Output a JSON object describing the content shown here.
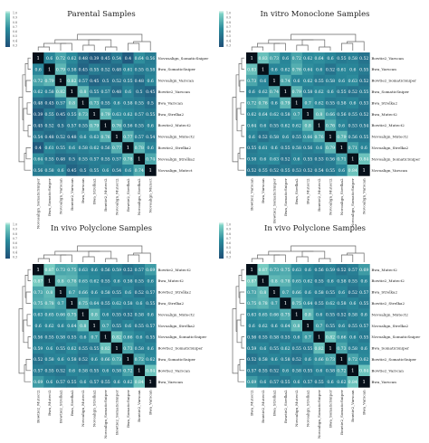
{
  "colors": {
    "low": "#1f4f77",
    "mid": "#2a8a9b",
    "high": "#7fd3c6",
    "diag": "#06101a",
    "cell_text": "#ffffff",
    "tree": "#666666"
  },
  "colorbar_ticks": [
    "1.0",
    "0.9",
    "0.8",
    "0.7",
    "0.6",
    "0.5",
    "0.4",
    "0.3"
  ],
  "chart_data": [
    {
      "type": "heatmap",
      "title": "Parental Samples",
      "samples": [
        "Novosalign_SomaticSniper",
        "Bwa_SomaticSniper",
        "Novoalign_Varscan",
        "Bowtie2_Varscan",
        "Bwa_Varscan",
        "Bwa_Strelka2",
        "Bowtie2_Mutect2",
        "Novoalign_Mutect2",
        "Bowtie2_Strelka2",
        "Novoalign_Strelka2",
        "Novoalign_Mutect"
      ],
      "matrix": [
        [
          1,
          0.6,
          0.72,
          0.62,
          0.48,
          0.39,
          0.45,
          0.54,
          0.4,
          0.64,
          0.56
        ],
        [
          0.6,
          1,
          0.79,
          0.58,
          0.45,
          0.55,
          0.52,
          0.48,
          0.61,
          0.55,
          0.58
        ],
        [
          0.72,
          0.79,
          1,
          0.82,
          0.57,
          0.45,
          0.5,
          0.52,
          0.55,
          0.48,
          0.6
        ],
        [
          0.62,
          0.58,
          0.82,
          1,
          0.8,
          0.55,
          0.57,
          0.48,
          0.6,
          0.5,
          0.45
        ],
        [
          0.48,
          0.45,
          0.57,
          0.8,
          1,
          0.73,
          0.55,
          0.6,
          0.58,
          0.55,
          0.5
        ],
        [
          0.39,
          0.55,
          0.45,
          0.55,
          0.73,
          1,
          0.79,
          0.63,
          0.62,
          0.57,
          0.55
        ],
        [
          0.45,
          0.52,
          0.5,
          0.57,
          0.55,
          0.79,
          1,
          0.76,
          0.56,
          0.55,
          0.6
        ],
        [
          0.54,
          0.48,
          0.52,
          0.48,
          0.6,
          0.63,
          0.76,
          1,
          0.77,
          0.57,
          0.54
        ],
        [
          0.4,
          0.61,
          0.55,
          0.6,
          0.58,
          0.62,
          0.56,
          0.77,
          1,
          0.78,
          0.6
        ],
        [
          0.64,
          0.55,
          0.48,
          0.5,
          0.55,
          0.57,
          0.55,
          0.57,
          0.78,
          1,
          0.74
        ],
        [
          0.56,
          0.58,
          0.6,
          0.45,
          0.5,
          0.55,
          0.6,
          0.54,
          0.6,
          0.74,
          1
        ]
      ]
    },
    {
      "type": "heatmap",
      "title": "In vitro Monoclone Samples",
      "samples": [
        "Bowtie2_Varscan",
        "Bwa_Varscan",
        "Bowtie2_SomaticSniper",
        "Bwa_SomaticSniper",
        "Bwa_Strelka2",
        "Bwa_Mutect2",
        "Bowtie2_Mutect2",
        "Novoalign_Mutect2",
        "Novoalign_Strelka2",
        "Novoalign_SomaticSniper",
        "Novoalign_Varscan"
      ],
      "matrix": [
        [
          1,
          0.83,
          0.73,
          0.6,
          0.72,
          0.62,
          0.64,
          0.6,
          0.55,
          0.58,
          0.52
        ],
        [
          0.83,
          1,
          0.6,
          0.62,
          0.76,
          0.64,
          0.6,
          0.52,
          0.61,
          0.6,
          0.55
        ],
        [
          0.73,
          0.6,
          1,
          0.74,
          0.6,
          0.62,
          0.55,
          0.58,
          0.6,
          0.63,
          0.52
        ],
        [
          0.6,
          0.62,
          0.74,
          1,
          0.79,
          0.58,
          0.62,
          0.6,
          0.55,
          0.52,
          0.55
        ],
        [
          0.72,
          0.76,
          0.6,
          0.79,
          1,
          0.7,
          0.62,
          0.55,
          0.58,
          0.6,
          0.53
        ],
        [
          0.62,
          0.64,
          0.62,
          0.58,
          0.7,
          1,
          0.8,
          0.66,
          0.56,
          0.55,
          0.52
        ],
        [
          0.64,
          0.6,
          0.55,
          0.62,
          0.62,
          0.8,
          1,
          0.76,
          0.6,
          0.53,
          0.54
        ],
        [
          0.6,
          0.52,
          0.58,
          0.6,
          0.55,
          0.66,
          0.76,
          1,
          0.79,
          0.56,
          0.55
        ],
        [
          0.55,
          0.61,
          0.6,
          0.55,
          0.58,
          0.56,
          0.6,
          0.79,
          1,
          0.71,
          0.6
        ],
        [
          0.58,
          0.6,
          0.63,
          0.52,
          0.6,
          0.55,
          0.53,
          0.56,
          0.71,
          1,
          0.84
        ],
        [
          0.52,
          0.55,
          0.52,
          0.55,
          0.53,
          0.52,
          0.54,
          0.55,
          0.6,
          0.84,
          1
        ]
      ]
    },
    {
      "type": "heatmap",
      "title": "In vivo Polyclone Samples",
      "samples": [
        "Bowtie2_Mutect2",
        "Bwa_Mutect2",
        "Bowtie2_Strelka2",
        "Bwa_Strelka2",
        "Novoalign_Mutect2",
        "Novoalign_Strelka2",
        "Novoalign_SomaticSniper",
        "Bowtie2_SomaticSniper",
        "Bwa_SomaticSniper",
        "Bowtie2_Varscan",
        "Bwa_Varscan"
      ],
      "matrix": [
        [
          1,
          0.87,
          0.73,
          0.75,
          0.63,
          0.6,
          0.56,
          0.59,
          0.52,
          0.57,
          0.69
        ],
        [
          0.87,
          1,
          0.8,
          0.78,
          0.65,
          0.62,
          0.55,
          0.6,
          0.58,
          0.55,
          0.6
        ],
        [
          0.73,
          0.8,
          1,
          0.7,
          0.66,
          0.6,
          0.58,
          0.55,
          0.6,
          0.52,
          0.57
        ],
        [
          0.75,
          0.78,
          0.7,
          1,
          0.75,
          0.64,
          0.55,
          0.62,
          0.58,
          0.6,
          0.55
        ],
        [
          0.63,
          0.65,
          0.66,
          0.75,
          1,
          0.8,
          0.6,
          0.55,
          0.52,
          0.58,
          0.6
        ],
        [
          0.6,
          0.62,
          0.6,
          0.64,
          0.8,
          1,
          0.7,
          0.55,
          0.6,
          0.55,
          0.57
        ],
        [
          0.56,
          0.55,
          0.58,
          0.55,
          0.6,
          0.7,
          1,
          0.82,
          0.66,
          0.6,
          0.55
        ],
        [
          0.59,
          0.6,
          0.55,
          0.62,
          0.55,
          0.55,
          0.82,
          1,
          0.73,
          0.58,
          0.6
        ],
        [
          0.52,
          0.58,
          0.6,
          0.58,
          0.52,
          0.6,
          0.66,
          0.73,
          1,
          0.72,
          0.62
        ],
        [
          0.57,
          0.55,
          0.52,
          0.6,
          0.58,
          0.55,
          0.6,
          0.58,
          0.72,
          1,
          0.84
        ],
        [
          0.69,
          0.6,
          0.57,
          0.55,
          0.6,
          0.57,
          0.55,
          0.6,
          0.62,
          0.84,
          1
        ]
      ]
    },
    {
      "type": "heatmap",
      "title": "In vivo Polyclone Samples",
      "samples": [
        "Bwa_Mutect2",
        "Bowtie2_Mutect2",
        "Bwa_Strelka2",
        "Bowtie2_Strelka2",
        "Novoalign_Mutect2",
        "Novoalign_Strelka2",
        "Novoalign_SomaticSniper",
        "Bwa_SomaticSniper",
        "Bowtie2_SomaticSniper",
        "Bowtie2_Varscan",
        "Bwa_Varscan"
      ],
      "matrix": [
        [
          1,
          0.87,
          0.73,
          0.75,
          0.63,
          0.6,
          0.56,
          0.59,
          0.52,
          0.57,
          0.69
        ],
        [
          0.87,
          1,
          0.8,
          0.78,
          0.65,
          0.62,
          0.55,
          0.6,
          0.58,
          0.55,
          0.6
        ],
        [
          0.73,
          0.8,
          1,
          0.7,
          0.66,
          0.6,
          0.58,
          0.55,
          0.6,
          0.52,
          0.57
        ],
        [
          0.75,
          0.78,
          0.7,
          1,
          0.75,
          0.64,
          0.55,
          0.62,
          0.58,
          0.6,
          0.55
        ],
        [
          0.63,
          0.65,
          0.66,
          0.75,
          1,
          0.8,
          0.6,
          0.55,
          0.52,
          0.58,
          0.6
        ],
        [
          0.6,
          0.62,
          0.6,
          0.64,
          0.8,
          1,
          0.7,
          0.55,
          0.6,
          0.55,
          0.57
        ],
        [
          0.56,
          0.55,
          0.58,
          0.55,
          0.6,
          0.7,
          1,
          0.82,
          0.66,
          0.6,
          0.55
        ],
        [
          0.59,
          0.6,
          0.55,
          0.62,
          0.55,
          0.55,
          0.82,
          1,
          0.73,
          0.58,
          0.6
        ],
        [
          0.52,
          0.58,
          0.6,
          0.58,
          0.52,
          0.6,
          0.66,
          0.73,
          1,
          0.72,
          0.62
        ],
        [
          0.57,
          0.55,
          0.52,
          0.6,
          0.58,
          0.55,
          0.6,
          0.58,
          0.72,
          1,
          0.84
        ],
        [
          0.69,
          0.6,
          0.57,
          0.55,
          0.6,
          0.57,
          0.55,
          0.6,
          0.62,
          0.84,
          1
        ]
      ]
    }
  ]
}
